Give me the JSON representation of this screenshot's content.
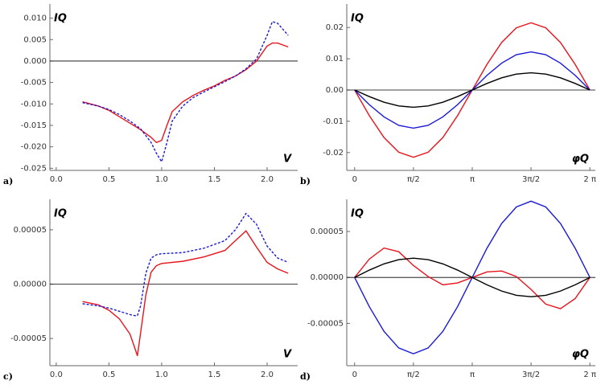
{
  "chart_data": [
    {
      "type": "line",
      "panel_label": "a)",
      "ylabel": "IQ",
      "xlabel": "V",
      "x": [
        0.25,
        0.4,
        0.5,
        0.6,
        0.7,
        0.8,
        0.9,
        0.95,
        1.0,
        1.05,
        1.1,
        1.2,
        1.3,
        1.4,
        1.5,
        1.6,
        1.7,
        1.8,
        1.9,
        2.0,
        2.05,
        2.1,
        2.2
      ],
      "series": [
        {
          "color": "#e8141c",
          "style": "solid",
          "values": [
            -0.0095,
            -0.0105,
            -0.0115,
            -0.013,
            -0.0145,
            -0.016,
            -0.0178,
            -0.019,
            -0.0185,
            -0.015,
            -0.0118,
            -0.0095,
            -0.008,
            -0.0068,
            -0.0058,
            -0.0045,
            -0.0035,
            -0.002,
            0.0,
            0.0035,
            0.0042,
            0.0042,
            0.0033
          ]
        },
        {
          "color": "#1a1ad6",
          "style": "dashed",
          "values": [
            -0.0097,
            -0.0105,
            -0.0113,
            -0.0125,
            -0.014,
            -0.0158,
            -0.019,
            -0.0215,
            -0.0235,
            -0.019,
            -0.014,
            -0.0105,
            -0.0085,
            -0.0072,
            -0.006,
            -0.0048,
            -0.0035,
            -0.0018,
            0.0005,
            0.006,
            0.0092,
            0.0088,
            0.006
          ]
        }
      ],
      "xlim": [
        -0.06,
        2.29
      ],
      "ylim": [
        -0.0255,
        0.0133
      ],
      "xticks": [
        {
          "value": 0,
          "label": "0.0"
        },
        {
          "value": 0.5,
          "label": "0.5"
        },
        {
          "value": 1,
          "label": "1.0"
        },
        {
          "value": 1.5,
          "label": "1.5"
        },
        {
          "value": 2,
          "label": "2.0"
        }
      ],
      "yticks": [
        {
          "value": 0.01,
          "label": "0.010"
        },
        {
          "value": 0.005,
          "label": "0.005"
        },
        {
          "value": 0,
          "label": "0.000"
        },
        {
          "value": -0.005,
          "label": "-0.005"
        },
        {
          "value": -0.01,
          "label": "-0.010"
        },
        {
          "value": -0.015,
          "label": "-0.015"
        },
        {
          "value": -0.02,
          "label": "-0.020"
        },
        {
          "value": -0.025,
          "label": "-0.025"
        }
      ],
      "zero_line": true
    },
    {
      "type": "line",
      "panel_label": "b)",
      "ylabel": "IQ",
      "xlabel": "φQ",
      "x": [
        0,
        0.3927,
        0.7854,
        1.1781,
        1.5708,
        1.9635,
        2.3562,
        2.7489,
        3.1416,
        3.5343,
        3.927,
        4.3197,
        4.7124,
        5.1051,
        5.4978,
        5.8905,
        6.2832
      ],
      "series": [
        {
          "color": "#e8141c",
          "style": "solid",
          "values": [
            0,
            -0.0082,
            -0.0152,
            -0.0199,
            -0.0215,
            -0.0199,
            -0.0152,
            -0.0082,
            0,
            0.0082,
            0.0152,
            0.0199,
            0.0215,
            0.0199,
            0.0152,
            0.0082,
            0
          ]
        },
        {
          "color": "#1a1ad6",
          "style": "solid",
          "values": [
            0,
            -0.0047,
            -0.0086,
            -0.0113,
            -0.0122,
            -0.0113,
            -0.0086,
            -0.0047,
            0,
            0.0047,
            0.0086,
            0.0113,
            0.0122,
            0.0113,
            0.0086,
            0.0047,
            0
          ]
        },
        {
          "color": "#000000",
          "style": "solid",
          "values": [
            0,
            -0.0021,
            -0.0039,
            -0.0051,
            -0.0055,
            -0.0051,
            -0.0039,
            -0.0021,
            0,
            0.0021,
            0.0039,
            0.0051,
            0.0055,
            0.0051,
            0.0039,
            0.0021,
            0
          ]
        }
      ],
      "xlim": [
        -0.21,
        6.43
      ],
      "ylim": [
        -0.0257,
        0.0275
      ],
      "xticks": [
        0,
        {
          "value": 1.5708,
          "label": "π/2"
        },
        {
          "value": 3.1416,
          "label": "π"
        },
        {
          "value": 4.7124,
          "label": "3π/2"
        },
        {
          "value": 6.2832,
          "label": "2 π"
        }
      ],
      "yticks": [
        0.02,
        0.01,
        {
          "value": 0,
          "label": "0.00"
        },
        -0.01,
        -0.02
      ],
      "zero_line": true
    },
    {
      "type": "line",
      "panel_label": "c)",
      "ylabel": "IQ",
      "xlabel": "V",
      "x": [
        0.25,
        0.4,
        0.5,
        0.6,
        0.7,
        0.75,
        0.77,
        0.8,
        0.85,
        0.9,
        0.95,
        1.0,
        1.2,
        1.4,
        1.6,
        1.7,
        1.8,
        1.9,
        2.0,
        2.1,
        2.2
      ],
      "series": [
        {
          "color": "#e8141c",
          "style": "solid",
          "values": [
            -1.6e-05,
            -1.9e-05,
            -2.4e-05,
            -3.2e-05,
            -4.6e-05,
            -6e-05,
            -6.6e-05,
            -4.5e-05,
            -1e-05,
            1.1e-05,
            1.7e-05,
            1.9e-05,
            2.1e-05,
            2.5e-05,
            3.1e-05,
            4e-05,
            4.9e-05,
            3.4e-05,
            2e-05,
            1.4e-05,
            1e-05
          ]
        },
        {
          "color": "#1a1ad6",
          "style": "dashed",
          "values": [
            -1.8e-05,
            -2e-05,
            -2.2e-05,
            -2.5e-05,
            -2.8e-05,
            -2.9e-05,
            -2.9e-05,
            -2e-05,
            1e-05,
            2.4e-05,
            2.7e-05,
            2.8e-05,
            2.9e-05,
            3.3e-05,
            4e-05,
            5e-05,
            6.5e-05,
            5.5e-05,
            3.5e-05,
            2.4e-05,
            2e-05
          ]
        }
      ],
      "xlim": [
        -0.06,
        2.29
      ],
      "ylim": [
        -7.5e-05,
        7.8e-05
      ],
      "xticks": [
        {
          "value": 0,
          "label": "0.0"
        },
        {
          "value": 0.5,
          "label": "0.5"
        },
        {
          "value": 1,
          "label": "1.0"
        },
        {
          "value": 1.5,
          "label": "1.5"
        },
        {
          "value": 2,
          "label": "2.0"
        }
      ],
      "yticks": [
        5e-05,
        {
          "value": 0,
          "label": "0.00000"
        },
        -5e-05
      ],
      "zero_line": true
    },
    {
      "type": "line",
      "panel_label": "d)",
      "ylabel": "IQ",
      "xlabel": "φQ",
      "x": [
        0,
        0.3927,
        0.7854,
        1.1781,
        1.5708,
        1.9635,
        2.3562,
        2.7489,
        3.1416,
        3.5343,
        3.927,
        4.3197,
        4.7124,
        5.1051,
        5.4978,
        5.8905,
        6.2832
      ],
      "series": [
        {
          "color": "#e8141c",
          "style": "solid",
          "values": [
            0,
            2e-05,
            3.2e-05,
            2.8e-05,
            1.3e-05,
            1e-06,
            -8e-06,
            -6e-06,
            0,
            6e-06,
            7e-06,
            1e-06,
            -1.3e-05,
            -2.9e-05,
            -3.4e-05,
            -2.3e-05,
            0
          ]
        },
        {
          "color": "#1a1ad6",
          "style": "solid",
          "values": [
            0,
            -3.18e-05,
            -5.87e-05,
            -7.67e-05,
            -8.3e-05,
            -7.67e-05,
            -5.87e-05,
            -3.18e-05,
            0,
            3.18e-05,
            5.87e-05,
            7.67e-05,
            8.3e-05,
            7.67e-05,
            5.87e-05,
            3.18e-05,
            0
          ]
        },
        {
          "color": "#000000",
          "style": "solid",
          "values": [
            0,
            8e-06,
            1.48e-05,
            1.94e-05,
            2.1e-05,
            1.94e-05,
            1.48e-05,
            8e-06,
            0,
            -8e-06,
            -1.48e-05,
            -1.94e-05,
            -2.1e-05,
            -1.94e-05,
            -1.48e-05,
            -8e-06,
            0
          ]
        }
      ],
      "xlim": [
        -0.21,
        6.43
      ],
      "ylim": [
        -9.6e-05,
        8.5e-05
      ],
      "xticks": [
        0,
        {
          "value": 1.5708,
          "label": "π/2"
        },
        {
          "value": 3.1416,
          "label": "π"
        },
        {
          "value": 4.7124,
          "label": "3π/2"
        },
        {
          "value": 6.2832,
          "label": "2 π"
        }
      ],
      "yticks": [
        5e-05,
        {
          "value": 0,
          "label": "0.00000"
        },
        -5e-05
      ],
      "zero_line": true
    }
  ]
}
